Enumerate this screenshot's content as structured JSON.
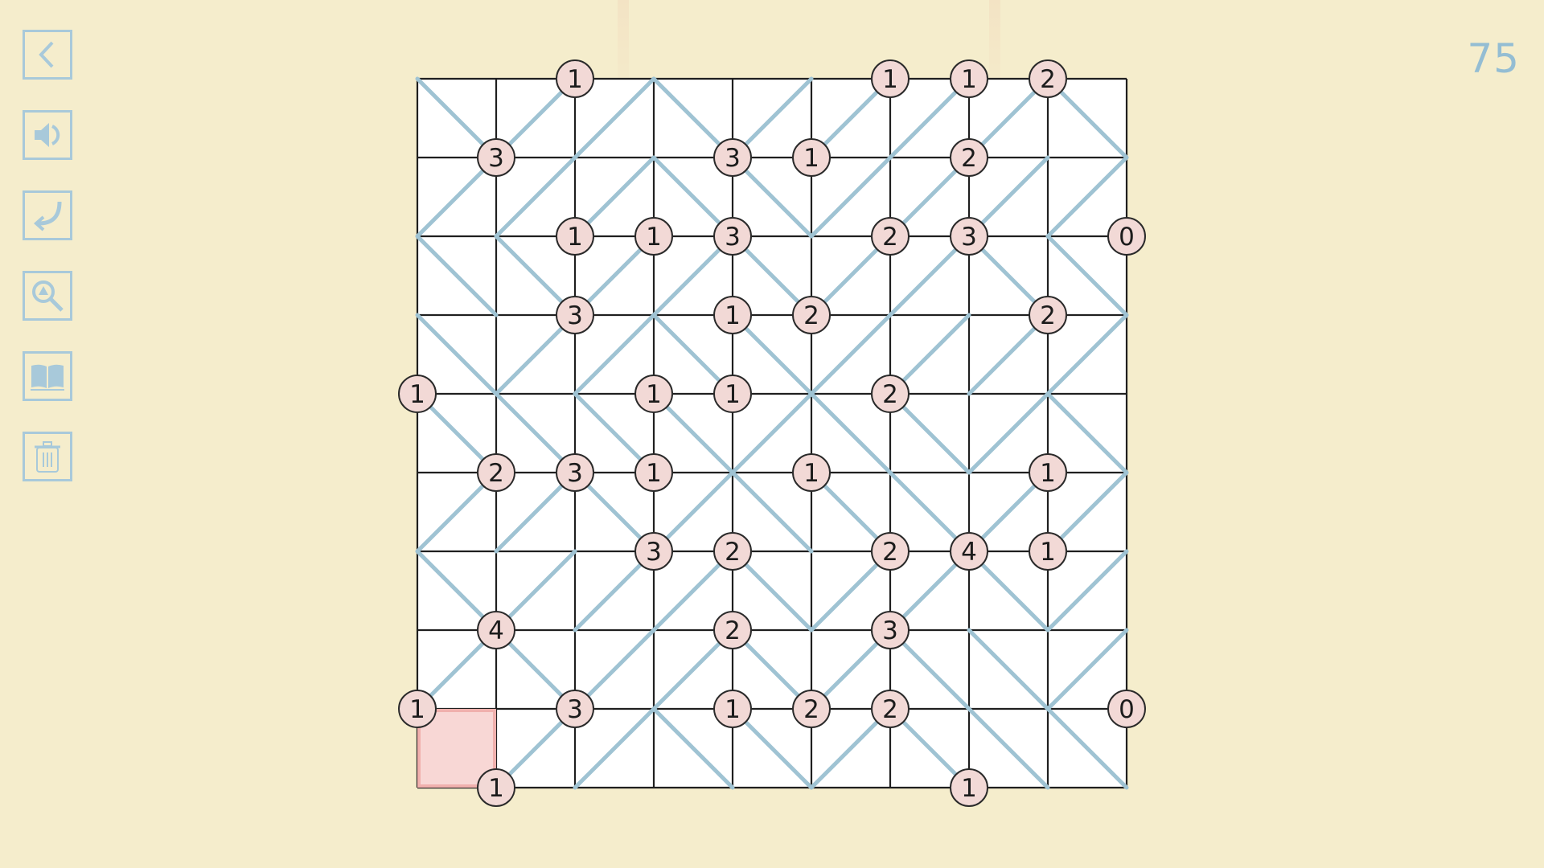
{
  "level_number": "75",
  "toolbar": [
    {
      "id": "back",
      "icon": "chevron-left-icon"
    },
    {
      "id": "sound",
      "icon": "speaker-icon"
    },
    {
      "id": "undo",
      "icon": "undo-arrow-icon"
    },
    {
      "id": "check",
      "icon": "magnifier-warning-icon"
    },
    {
      "id": "rules",
      "icon": "book-icon"
    },
    {
      "id": "clear",
      "icon": "trash-icon"
    }
  ],
  "colors": {
    "background": "#f5edcc",
    "grid_line": "#1f1f1f",
    "slant": "#9fc3d3",
    "clue_fill": "#f2d9d6",
    "selected_cell": "#f8d7d5",
    "accent": "#94bdd3"
  },
  "puzzle": {
    "size": 9,
    "selected_cell": {
      "row": 8,
      "col": 0
    },
    "slants": [
      "\\//\\////\\",
      "///\\\\////",
      "\\\\//\\//\\\\",
      "\\//\\\\////",
      "\\\\\\\\/\\\\/\\",
      "//\\/\\\\\\//",
      "\\///\\//\\/",
      "/\\//\\/\\\\/",
      ".//\\\\/\\\\\\"
    ],
    "clues": [
      {
        "r": 0,
        "c": 2,
        "v": "1"
      },
      {
        "r": 0,
        "c": 6,
        "v": "1"
      },
      {
        "r": 0,
        "c": 7,
        "v": "1"
      },
      {
        "r": 0,
        "c": 8,
        "v": "2"
      },
      {
        "r": 1,
        "c": 1,
        "v": "3"
      },
      {
        "r": 1,
        "c": 4,
        "v": "3"
      },
      {
        "r": 1,
        "c": 5,
        "v": "1"
      },
      {
        "r": 1,
        "c": 7,
        "v": "2"
      },
      {
        "r": 2,
        "c": 2,
        "v": "1"
      },
      {
        "r": 2,
        "c": 3,
        "v": "1"
      },
      {
        "r": 2,
        "c": 4,
        "v": "3"
      },
      {
        "r": 2,
        "c": 6,
        "v": "2"
      },
      {
        "r": 2,
        "c": 7,
        "v": "3"
      },
      {
        "r": 2,
        "c": 9,
        "v": "0"
      },
      {
        "r": 3,
        "c": 2,
        "v": "3"
      },
      {
        "r": 3,
        "c": 4,
        "v": "1"
      },
      {
        "r": 3,
        "c": 5,
        "v": "2"
      },
      {
        "r": 3,
        "c": 8,
        "v": "2"
      },
      {
        "r": 4,
        "c": 0,
        "v": "1"
      },
      {
        "r": 4,
        "c": 3,
        "v": "1"
      },
      {
        "r": 4,
        "c": 4,
        "v": "1"
      },
      {
        "r": 4,
        "c": 6,
        "v": "2"
      },
      {
        "r": 5,
        "c": 1,
        "v": "2"
      },
      {
        "r": 5,
        "c": 2,
        "v": "3"
      },
      {
        "r": 5,
        "c": 3,
        "v": "1"
      },
      {
        "r": 5,
        "c": 5,
        "v": "1"
      },
      {
        "r": 5,
        "c": 8,
        "v": "1"
      },
      {
        "r": 6,
        "c": 3,
        "v": "3"
      },
      {
        "r": 6,
        "c": 4,
        "v": "2"
      },
      {
        "r": 6,
        "c": 6,
        "v": "2"
      },
      {
        "r": 6,
        "c": 7,
        "v": "4"
      },
      {
        "r": 6,
        "c": 8,
        "v": "1"
      },
      {
        "r": 7,
        "c": 1,
        "v": "4"
      },
      {
        "r": 7,
        "c": 4,
        "v": "2"
      },
      {
        "r": 7,
        "c": 6,
        "v": "3"
      },
      {
        "r": 8,
        "c": 0,
        "v": "1"
      },
      {
        "r": 8,
        "c": 2,
        "v": "3"
      },
      {
        "r": 8,
        "c": 4,
        "v": "1"
      },
      {
        "r": 8,
        "c": 5,
        "v": "2"
      },
      {
        "r": 8,
        "c": 6,
        "v": "2"
      },
      {
        "r": 8,
        "c": 9,
        "v": "0"
      },
      {
        "r": 9,
        "c": 1,
        "v": "1"
      },
      {
        "r": 9,
        "c": 7,
        "v": "1"
      }
    ]
  }
}
